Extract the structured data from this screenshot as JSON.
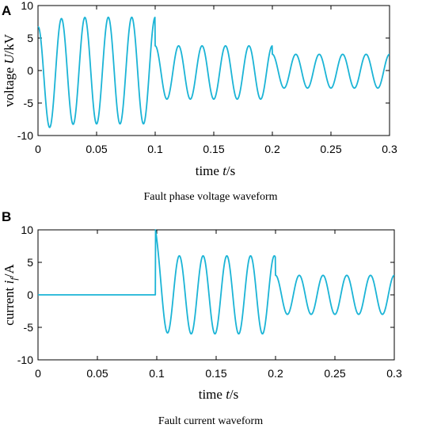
{
  "colors": {
    "wave": "#1bb4d6"
  },
  "chart_data": [
    {
      "type": "line",
      "panel": "A",
      "caption": "Fault phase voltage waveform",
      "xlabel_prefix": "time ",
      "xlabel_var": "t",
      "xlabel_unit": "/s",
      "ylabel_prefix": "voltage ",
      "ylabel_var": "U",
      "ylabel_unit": "/kV",
      "xlim": [
        0,
        0.3
      ],
      "ylim": [
        -10,
        10
      ],
      "xticks": [
        0,
        0.05,
        0.1,
        0.15,
        0.2,
        0.25,
        0.3
      ],
      "xtick_labels": [
        "0",
        "0.05",
        "0.1",
        "0.15",
        "0.2",
        "0.25",
        "0.3"
      ],
      "yticks": [
        -10,
        -5,
        0,
        5,
        10
      ],
      "ytick_labels": [
        "-10",
        "-5",
        "0",
        "5",
        "10"
      ],
      "grid": false,
      "series": [
        {
          "frequency_hz": 50,
          "segments": [
            {
              "t_start": 0,
              "t_end": 0.1,
              "amplitude": 8.2,
              "offset": 0,
              "phase_deg": 90,
              "decay_offset": -1.5,
              "decay_tau": 0.01
            },
            {
              "t_start": 0.1,
              "t_end": 0.2,
              "amplitude": 4.1,
              "offset": -0.3,
              "phase_deg": 90
            },
            {
              "t_start": 0.2,
              "t_end": 0.3,
              "amplitude": 2.6,
              "offset": -0.1,
              "phase_deg": 90
            }
          ]
        }
      ]
    },
    {
      "type": "line",
      "panel": "B",
      "caption": "Fault current waveform",
      "xlabel_prefix": "time ",
      "xlabel_var": "t",
      "xlabel_unit": "/s",
      "ylabel_prefix": "current ",
      "ylabel_var": "i",
      "ylabel_sub": "f",
      "ylabel_unit": "/A",
      "xlim": [
        0,
        0.3
      ],
      "ylim": [
        -10,
        10
      ],
      "xticks": [
        0,
        0.05,
        0.1,
        0.15,
        0.2,
        0.25,
        0.3
      ],
      "xtick_labels": [
        "0",
        "0.05",
        "0.1",
        "0.15",
        "0.2",
        "0.25",
        "0.3"
      ],
      "yticks": [
        -10,
        -5,
        0,
        5,
        10
      ],
      "ytick_labels": [
        "-10",
        "-5",
        "0",
        "5",
        "10"
      ],
      "grid": false,
      "series": [
        {
          "frequency_hz": 50,
          "segments": [
            {
              "t_start": 0,
              "t_end": 0.099,
              "amplitude": 0,
              "offset": 0,
              "phase_deg": 0
            },
            {
              "t_start": 0.099,
              "t_end": 0.2,
              "amplitude": 6.0,
              "offset": 0,
              "phase_deg": 90,
              "decay_offset": 4.0,
              "decay_tau": 0.003
            },
            {
              "t_start": 0.2,
              "t_end": 0.3,
              "amplitude": 3.0,
              "offset": 0,
              "phase_deg": 90
            }
          ]
        }
      ]
    }
  ]
}
